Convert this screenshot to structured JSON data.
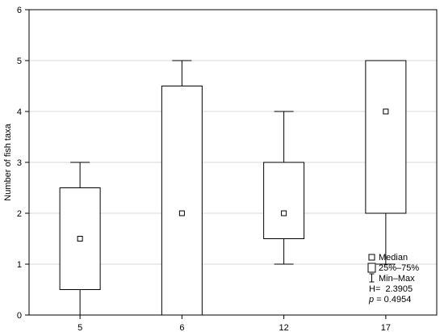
{
  "chart_data": {
    "type": "boxplot",
    "categories": [
      "5",
      "6",
      "12",
      "17"
    ],
    "boxes": [
      {
        "category": "5",
        "median": 1.5,
        "q1": 0.5,
        "q3": 2.5,
        "min": 0,
        "max": 3
      },
      {
        "category": "6",
        "median": 2,
        "q1": 0,
        "q3": 4.5,
        "min": 0,
        "max": 5
      },
      {
        "category": "12",
        "median": 2,
        "q1": 1.5,
        "q3": 3,
        "min": 1,
        "max": 4
      },
      {
        "category": "17",
        "median": 4,
        "q1": 2,
        "q3": 5,
        "min": 1,
        "max": 5
      }
    ],
    "ylabel": "Number of fish taxa",
    "xlabel": "",
    "ylim": [
      0,
      6
    ],
    "yticks": [
      "0",
      "1",
      "2",
      "3",
      "4",
      "5",
      "6"
    ],
    "grid": true,
    "legend_position": "bottom-right",
    "legend": {
      "median": "Median",
      "box": "25%–75%",
      "whisker": "Min–Max"
    },
    "stats": {
      "h_label": "H=",
      "h_value": "2.3905",
      "p_label": "p",
      "p_value": "= 0.4954"
    }
  },
  "colors": {
    "axis": "#000000",
    "grid": "#d9d9d9",
    "box_fill": "#ffffff"
  }
}
